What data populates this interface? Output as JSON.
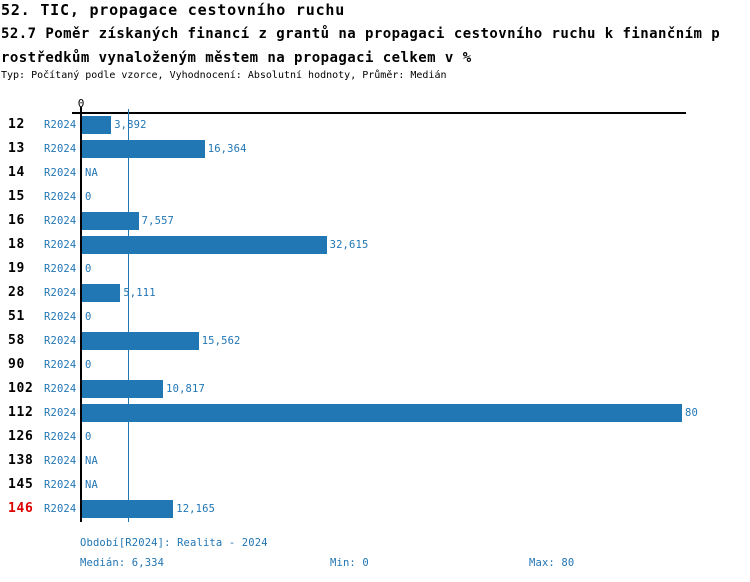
{
  "title": {
    "line1": "52. TIC, propagace cestovního ruchu",
    "line2": "52.7 Poměr získaných financí z grantů na propagaci cestovního ruchu k finančním p",
    "line3": "rostředkům vynaloženým městem na propagaci celkem v %",
    "meta": "Typ: Počítaný podle vzorce, Vyhodnocení: Absolutní hodnoty, Průměr: Medián"
  },
  "chart_data": {
    "type": "bar",
    "orientation": "horizontal",
    "title": "52.7 Poměr získaných financí z grantů na propagaci cestovního ruchu k finančním prostředkům vynaloženým městem na propagaci celkem v %",
    "xlim": [
      0,
      80
    ],
    "x_axis_zero_label": "0",
    "grid": false,
    "median": 6.334,
    "series_label": "R2024",
    "categories": [
      "12",
      "13",
      "14",
      "15",
      "16",
      "18",
      "19",
      "28",
      "51",
      "58",
      "90",
      "102",
      "112",
      "126",
      "138",
      "145",
      "146"
    ],
    "rows": [
      {
        "id": "12",
        "series": "R2024",
        "value": 3.892,
        "label": "3,892",
        "highlight": false
      },
      {
        "id": "13",
        "series": "R2024",
        "value": 16.364,
        "label": "16,364",
        "highlight": false
      },
      {
        "id": "14",
        "series": "R2024",
        "value": null,
        "label": "NA",
        "highlight": false
      },
      {
        "id": "15",
        "series": "R2024",
        "value": 0,
        "label": "0",
        "highlight": false
      },
      {
        "id": "16",
        "series": "R2024",
        "value": 7.557,
        "label": "7,557",
        "highlight": false
      },
      {
        "id": "18",
        "series": "R2024",
        "value": 32.615,
        "label": "32,615",
        "highlight": false
      },
      {
        "id": "19",
        "series": "R2024",
        "value": 0,
        "label": "0",
        "highlight": false
      },
      {
        "id": "28",
        "series": "R2024",
        "value": 5.111,
        "label": "5,111",
        "highlight": false
      },
      {
        "id": "51",
        "series": "R2024",
        "value": 0,
        "label": "0",
        "highlight": false
      },
      {
        "id": "58",
        "series": "R2024",
        "value": 15.562,
        "label": "15,562",
        "highlight": false
      },
      {
        "id": "90",
        "series": "R2024",
        "value": 0,
        "label": "0",
        "highlight": false
      },
      {
        "id": "102",
        "series": "R2024",
        "value": 10.817,
        "label": "10,817",
        "highlight": false
      },
      {
        "id": "112",
        "series": "R2024",
        "value": 80,
        "label": "80",
        "highlight": false
      },
      {
        "id": "126",
        "series": "R2024",
        "value": 0,
        "label": "0",
        "highlight": false
      },
      {
        "id": "138",
        "series": "R2024",
        "value": null,
        "label": "NA",
        "highlight": false
      },
      {
        "id": "145",
        "series": "R2024",
        "value": null,
        "label": "NA",
        "highlight": false
      },
      {
        "id": "146",
        "series": "R2024",
        "value": 12.165,
        "label": "12,165",
        "highlight": true
      }
    ],
    "colors": {
      "bar": "#2176b4",
      "text_blue": "#2176b4",
      "highlight_red": "#dd0000",
      "axis_black": "#000000"
    }
  },
  "footer": {
    "period": "Období[R2024]: Realita - 2024",
    "median": "Medián: 6,334",
    "min": "Min: 0",
    "max": "Max: 80"
  }
}
